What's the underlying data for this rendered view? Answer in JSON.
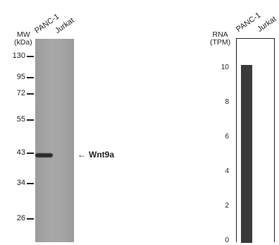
{
  "western_blot": {
    "lanes": [
      "PANC-1",
      "Jurkat"
    ],
    "mw_header": [
      "MW",
      "(kDa)"
    ],
    "mw_markers": [
      "130",
      "95",
      "72",
      "55",
      "43",
      "34",
      "26"
    ],
    "target_label": "Wnt9a",
    "arrow_glyph": "←"
  },
  "rna_panel": {
    "header": [
      "RNA",
      "(TPM)"
    ],
    "lanes": [
      "PANC-1",
      "Jurkat"
    ]
  },
  "chart_data": {
    "type": "bar",
    "categories": [
      "PANC-1",
      "Jurkat"
    ],
    "values": [
      10.2,
      0
    ],
    "ylabel": "RNA (TPM)",
    "ylim": [
      0,
      11
    ],
    "yticks": [
      "10",
      "8",
      "6",
      "4",
      "2",
      "0"
    ],
    "bar_color": "#3a3a3a"
  }
}
